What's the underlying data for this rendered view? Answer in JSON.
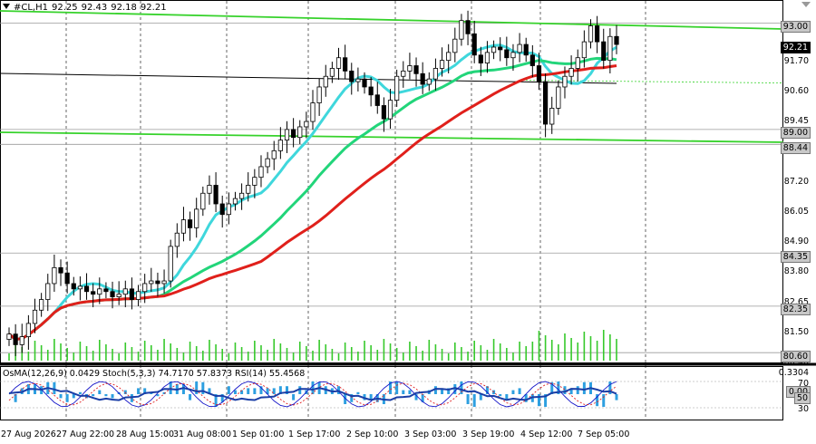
{
  "header": {
    "symbol": "#CL,H1",
    "open": "92.25",
    "high": "92.43",
    "low": "92.18",
    "close": "92.21"
  },
  "price_axis": {
    "labels": [
      "91.70",
      "90.60",
      "89.45",
      "87.20",
      "86.05",
      "84.90",
      "83.80",
      "82.65",
      "81.50",
      "80.40"
    ],
    "tags": [
      "93.00",
      "89.00",
      "88.44",
      "84.35",
      "82.35",
      "80.60"
    ],
    "current_price": "92.21"
  },
  "time_axis": {
    "labels": [
      "27 Aug 2026",
      "27 Aug 22:00",
      "28 Aug 15:00",
      "31 Aug 08:00",
      "1 Sep 01:00",
      "1 Sep 17:00",
      "2 Sep 10:00",
      "3 Sep 03:00",
      "3 Sep 19:00",
      "4 Sep 12:00",
      "7 Sep 05:00"
    ]
  },
  "indicator_panel": {
    "osma": "OsMA(12,26,9)",
    "osma_value": "0.0429",
    "stoch": "Stoch(5,3,3)",
    "stoch_k": "74.7170",
    "stoch_d": "57.8373",
    "rsi": "RSI(14)",
    "rsi_value": "55.4568",
    "axis_labels": [
      "0.3304",
      "70",
      "50",
      "30"
    ],
    "axis_tags": [
      "0.00",
      "50"
    ]
  },
  "colors": {
    "background": "#ffffff",
    "candle": "#000000",
    "ma_fast": "#3fd7dc",
    "ma_mid": "#22d57a",
    "ma_slow": "#e0201b",
    "channel": "#36d22b",
    "hline": "#9a9a9a",
    "osma": "#2d9fe0",
    "stoch_main": "#1515c8",
    "stoch_signal": "#e02020",
    "rsi": "#1a3ea6"
  },
  "chart_data": {
    "type": "candlestick",
    "symbol": "#CL",
    "timeframe": "H1",
    "ylim": [
      80.3,
      93.6
    ],
    "levels": [
      93.0,
      89.0,
      88.44,
      84.35,
      82.35,
      80.6
    ],
    "last_close": 92.21,
    "closes": [
      81.3,
      80.9,
      81.2,
      81.7,
      82.2,
      82.6,
      83.2,
      83.8,
      83.6,
      83.2,
      83.0,
      83.1,
      82.9,
      82.8,
      83.0,
      82.9,
      82.7,
      82.8,
      83.0,
      82.6,
      82.9,
      83.2,
      83.3,
      83.2,
      83.3,
      84.6,
      85.1,
      85.6,
      85.3,
      86.0,
      86.6,
      86.9,
      86.2,
      85.8,
      86.2,
      86.4,
      86.6,
      86.9,
      87.2,
      87.6,
      87.9,
      88.2,
      88.6,
      89.0,
      88.7,
      89.1,
      89.3,
      90.0,
      90.6,
      91.0,
      91.3,
      91.7,
      91.2,
      90.8,
      90.9,
      90.6,
      90.3,
      89.9,
      89.4,
      90.1,
      91.0,
      91.2,
      91.4,
      91.1,
      90.7,
      90.9,
      91.3,
      91.6,
      91.9,
      92.4,
      93.1,
      92.6,
      91.8,
      91.5,
      91.9,
      92.1,
      92.0,
      91.7,
      91.9,
      92.2,
      91.8,
      91.4,
      90.8,
      89.2,
      89.8,
      90.6,
      91.0,
      91.3,
      91.7,
      92.3,
      92.9,
      92.3,
      91.6,
      92.5,
      92.2
    ]
  }
}
